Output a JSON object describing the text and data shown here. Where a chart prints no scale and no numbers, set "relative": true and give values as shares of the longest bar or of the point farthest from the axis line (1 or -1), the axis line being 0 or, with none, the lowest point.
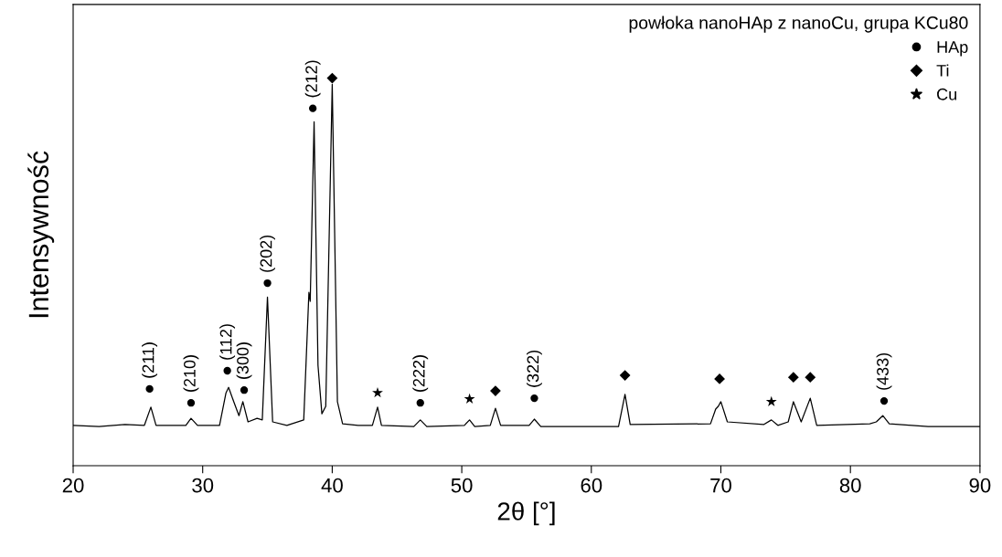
{
  "chart_data": {
    "type": "line",
    "relative": true,
    "xlabel": "2θ [°]",
    "ylabel": "Intensywność",
    "legend_title": "powłoka nanoHAp z nanoCu, grupa KCu80",
    "legend": "top right",
    "xlim": [
      20,
      90
    ],
    "xticks": [
      20,
      30,
      40,
      50,
      60,
      70,
      80,
      90
    ],
    "grid": false,
    "series": [
      {
        "color": "#000000",
        "x": [
          20,
          22,
          24,
          25.5,
          26.0,
          26.4,
          28.7,
          29.1,
          29.6,
          31.3,
          31.8,
          32.0,
          32.4,
          32.8,
          33.1,
          33.5,
          34.2,
          34.6,
          35.0,
          35.4,
          36.5,
          37.8,
          38.2,
          38.3,
          38.6,
          38.9,
          39.2,
          39.5,
          40.0,
          40.4,
          40.8,
          42,
          43.1,
          43.5,
          43.8,
          46.3,
          46.8,
          47.3,
          50.2,
          50.6,
          51,
          52.2,
          52.6,
          53.0,
          55.2,
          55.6,
          56.1,
          62.1,
          62.6,
          63.0,
          69.2,
          69.6,
          69.8,
          70.0,
          70.5,
          73.3,
          73.9,
          74.4,
          75.2,
          75.6,
          76.2,
          76.9,
          77.4,
          81.5,
          82.0,
          82.5,
          83.0,
          86,
          90
        ],
        "values": [
          0.104,
          0.101,
          0.106,
          0.104,
          0.151,
          0.104,
          0.104,
          0.122,
          0.104,
          0.104,
          0.188,
          0.202,
          0.165,
          0.129,
          0.165,
          0.113,
          0.122,
          0.118,
          0.435,
          0.113,
          0.104,
          0.118,
          0.447,
          0.424,
          0.887,
          0.259,
          0.134,
          0.153,
          0.984,
          0.165,
          0.108,
          0.104,
          0.104,
          0.151,
          0.104,
          0.101,
          0.118,
          0.101,
          0.104,
          0.118,
          0.101,
          0.104,
          0.148,
          0.104,
          0.104,
          0.12,
          0.101,
          0.101,
          0.184,
          0.106,
          0.108,
          0.146,
          0.153,
          0.165,
          0.113,
          0.106,
          0.118,
          0.104,
          0.113,
          0.165,
          0.113,
          0.174,
          0.104,
          0.108,
          0.113,
          0.129,
          0.108,
          0.101,
          0.101
        ]
      },
      {
        "type": "scatter",
        "name": "HAp",
        "marker": "circle",
        "color": "#000000",
        "x": [
          25.9,
          29.1,
          31.9,
          33.2,
          35.0,
          38.5,
          46.8,
          55.6,
          82.6
        ],
        "values": [
          0.198,
          0.162,
          0.245,
          0.195,
          0.471,
          0.922,
          0.162,
          0.174,
          0.167
        ]
      },
      {
        "type": "scatter",
        "name": "Ti",
        "marker": "diamond",
        "color": "#000000",
        "x": [
          40.0,
          52.6,
          62.6,
          69.9,
          75.6,
          76.9
        ],
        "values": [
          1.0,
          0.193,
          0.233,
          0.224,
          0.228,
          0.228
        ]
      },
      {
        "type": "scatter",
        "name": "Cu",
        "marker": "star",
        "color": "#000000",
        "x": [
          43.5,
          50.6,
          73.9
        ],
        "values": [
          0.188,
          0.172,
          0.165
        ]
      }
    ],
    "annotations": [
      {
        "text": "(211)",
        "x": 25.9,
        "y": 0.198
      },
      {
        "text": "(210)",
        "x": 29.1,
        "y": 0.162
      },
      {
        "text": "(112)",
        "x": 31.9,
        "y": 0.245
      },
      {
        "text": "(300)",
        "x": 33.2,
        "y": 0.195
      },
      {
        "text": "(202)",
        "x": 35.0,
        "y": 0.471
      },
      {
        "text": "(212)",
        "x": 38.5,
        "y": 0.922
      },
      {
        "text": "(222)",
        "x": 46.8,
        "y": 0.162
      },
      {
        "text": "(322)",
        "x": 55.6,
        "y": 0.174
      },
      {
        "text": "(433)",
        "x": 82.6,
        "y": 0.167
      }
    ]
  }
}
